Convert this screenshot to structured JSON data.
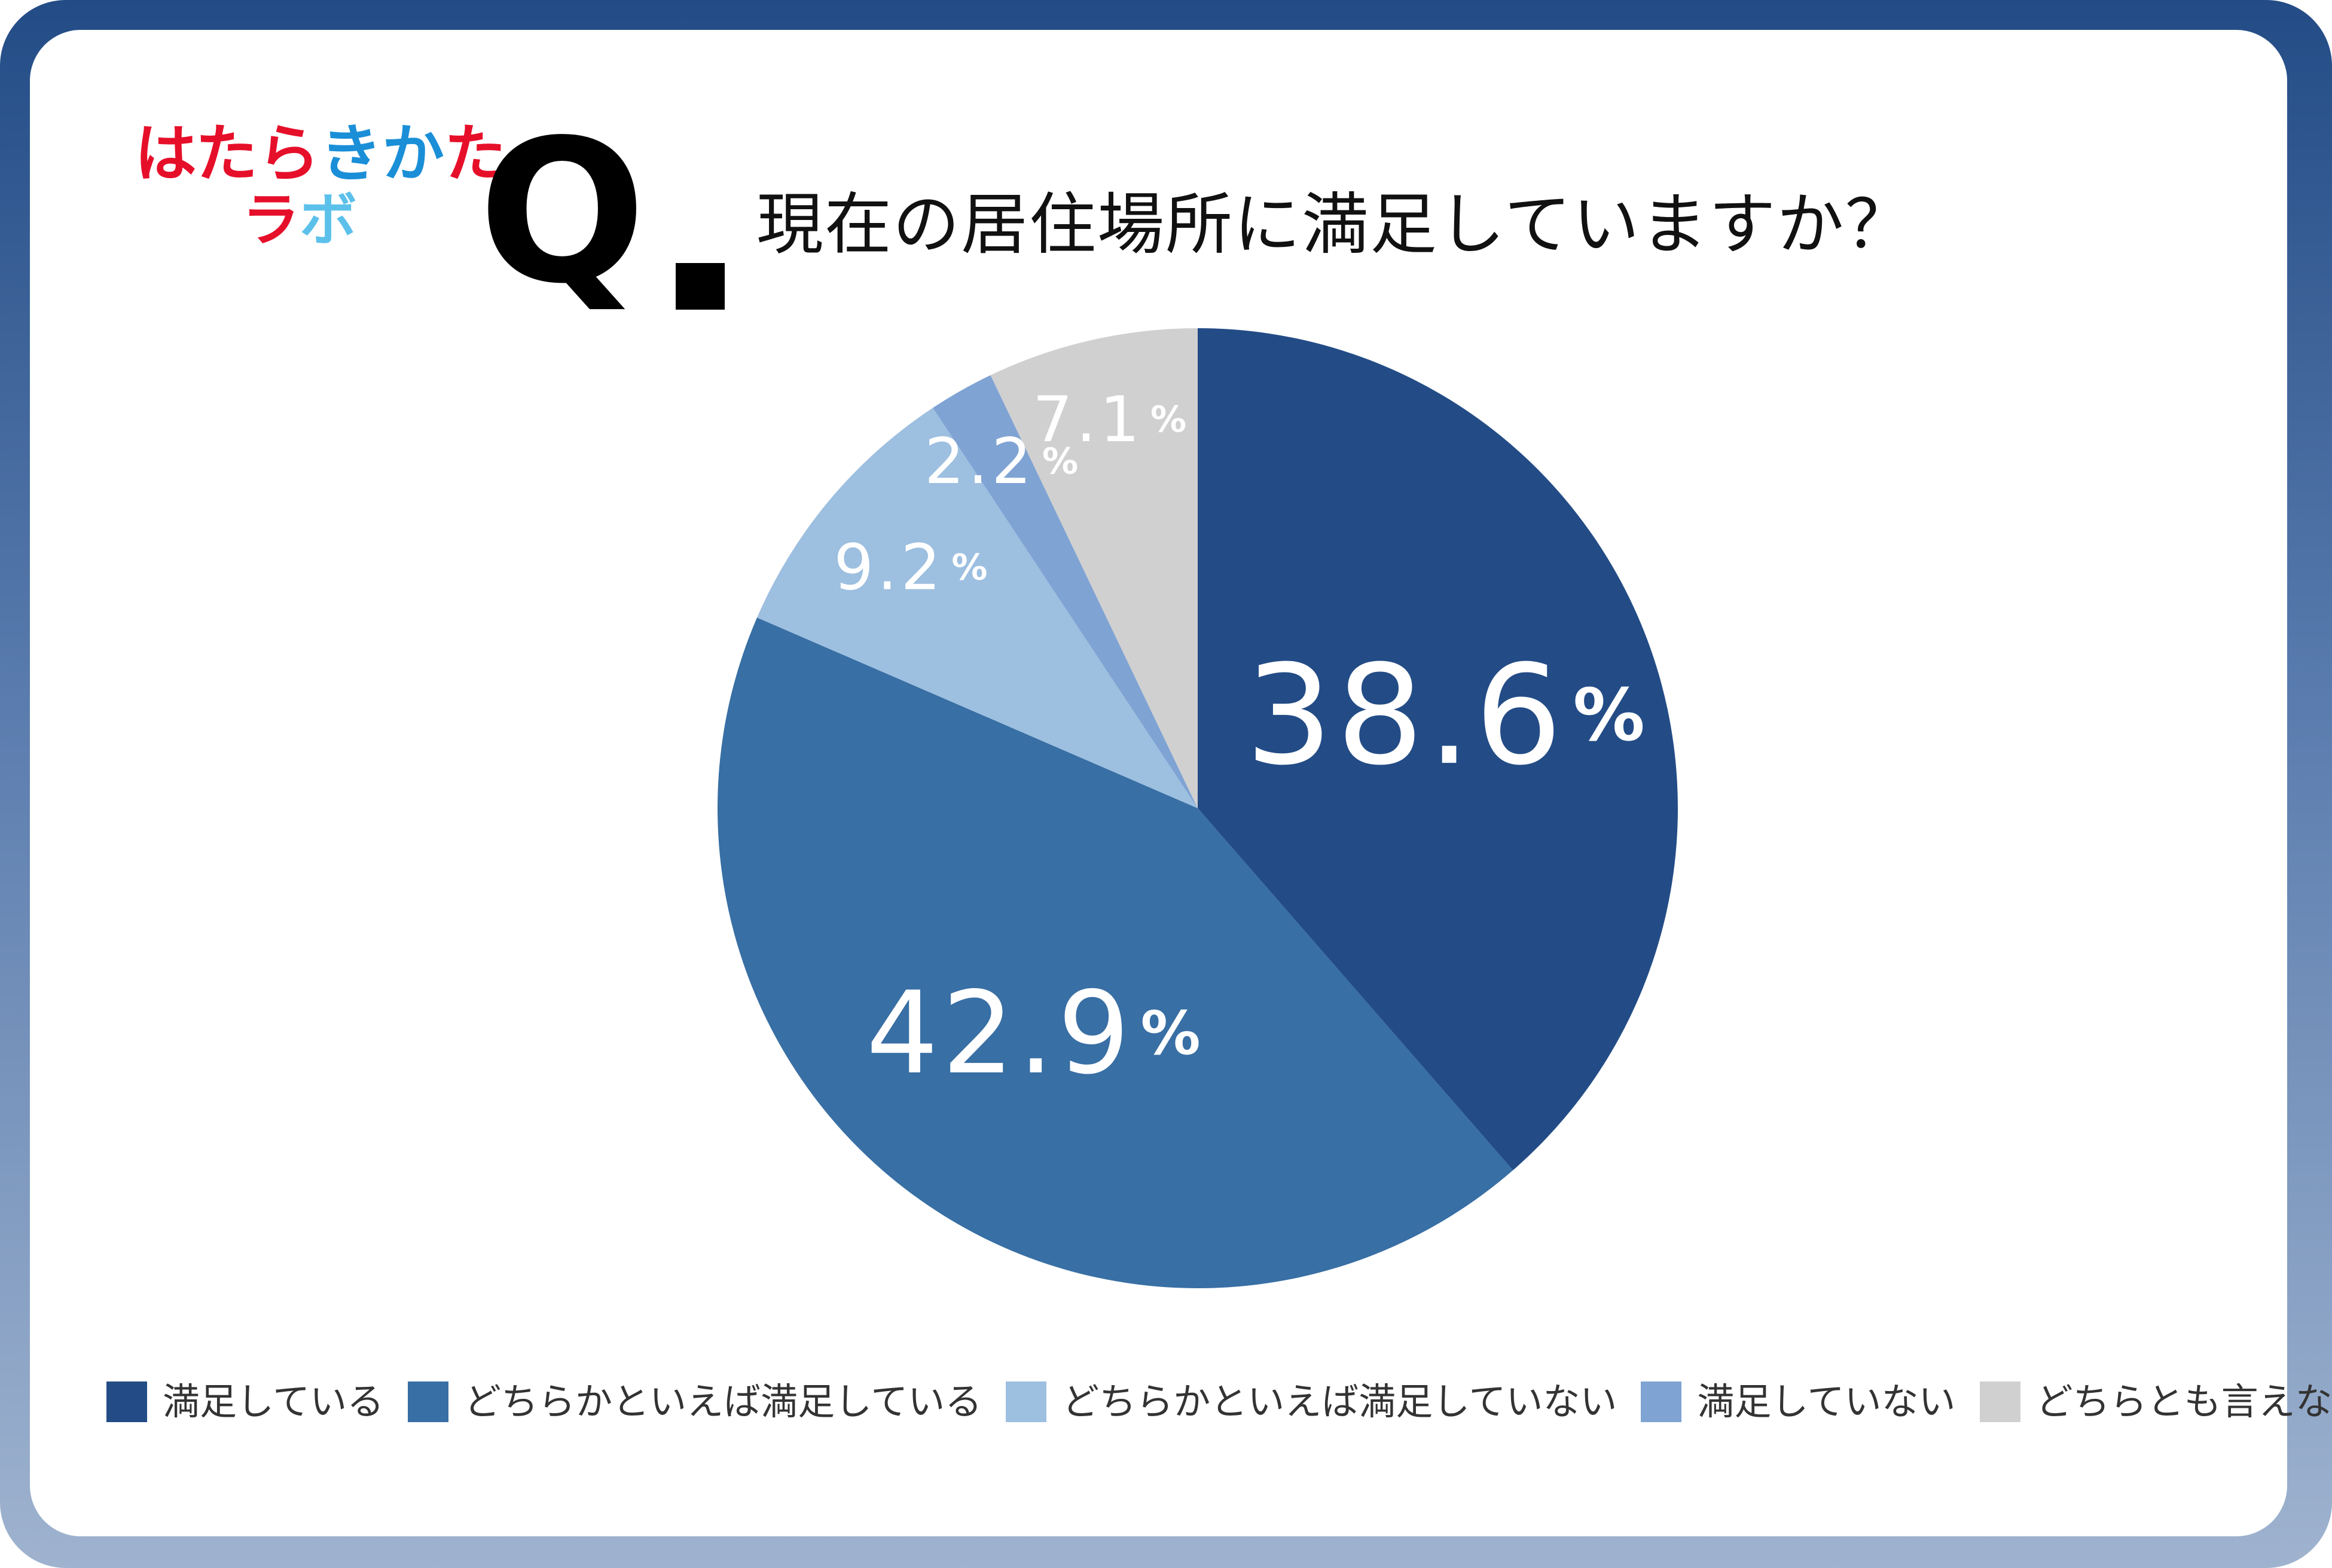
{
  "logo": {
    "line1": [
      "は",
      "た",
      "ら",
      "き",
      "か",
      "た"
    ],
    "line2": [
      "ラ",
      "ボ"
    ]
  },
  "header": {
    "q_mark": "Q",
    "question": "現在の居住場所に満足していますか？"
  },
  "colors": {
    "frame_top": "#234c86",
    "frame_bottom": "#9fb3cf",
    "logo_red": "#e60f2a",
    "logo_blue": "#1a8fd8"
  },
  "chart_data": {
    "type": "pie",
    "title": "現在の居住場所に満足していますか？",
    "start": "12 o'clock",
    "direction": "clockwise",
    "slices": [
      {
        "label": "満足している",
        "value": 38.6,
        "display": "38.6",
        "unit": "%",
        "color": "#234c86"
      },
      {
        "label": "どちらかといえば満足している",
        "value": 42.9,
        "display": "42.9",
        "unit": "%",
        "color": "#386fa4"
      },
      {
        "label": "どちらかといえば満足していない",
        "value": 9.2,
        "display": "9.2",
        "unit": "%",
        "color": "#9dbfe0"
      },
      {
        "label": "満足していない",
        "value": 2.2,
        "display": "2.2",
        "unit": "%",
        "color": "#7fa3d3"
      },
      {
        "label": "どちらとも言えない",
        "value": 7.1,
        "display": "7.1",
        "unit": "%",
        "color": "#d0d0d0"
      }
    ],
    "legend_position": "bottom"
  }
}
